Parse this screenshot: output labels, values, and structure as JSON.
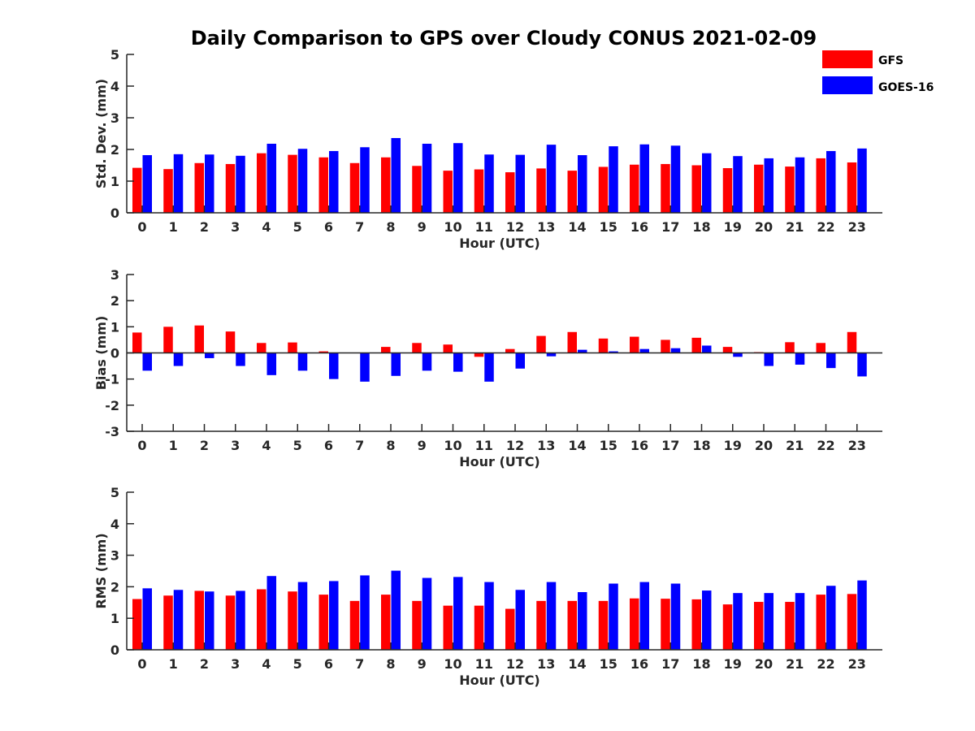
{
  "chart_data": [
    {
      "type": "bar",
      "title": "Daily Comparison to GPS over Cloudy CONUS 2021-02-09",
      "xlabel": "Hour (UTC)",
      "ylabel": "Std. Dev. (mm)",
      "ylim": [
        0,
        5
      ],
      "yticks": [
        "0",
        "1",
        "2",
        "3",
        "4",
        "5"
      ],
      "categories": [
        "0",
        "1",
        "2",
        "3",
        "4",
        "5",
        "6",
        "7",
        "8",
        "9",
        "10",
        "11",
        "12",
        "13",
        "14",
        "15",
        "16",
        "17",
        "18",
        "19",
        "20",
        "21",
        "22",
        "23"
      ],
      "series": [
        {
          "name": "GFS",
          "color": "#ff0000",
          "values": [
            1.42,
            1.38,
            1.57,
            1.54,
            1.88,
            1.83,
            1.75,
            1.57,
            1.75,
            1.48,
            1.33,
            1.37,
            1.28,
            1.4,
            1.33,
            1.45,
            1.52,
            1.54,
            1.5,
            1.41,
            1.52,
            1.46,
            1.72,
            1.59
          ]
        },
        {
          "name": "GOES-16",
          "color": "#0000ff",
          "values": [
            1.82,
            1.85,
            1.84,
            1.8,
            2.18,
            2.02,
            1.95,
            2.07,
            2.36,
            2.18,
            2.2,
            1.84,
            1.83,
            2.15,
            1.82,
            2.1,
            2.16,
            2.12,
            1.88,
            1.79,
            1.72,
            1.75,
            1.95,
            2.03
          ]
        }
      ]
    },
    {
      "type": "bar",
      "xlabel": "Hour (UTC)",
      "ylabel": "Bias (mm)",
      "ylim": [
        -3,
        3
      ],
      "yticks": [
        "-3",
        "-2",
        "-1",
        "0",
        "1",
        "2",
        "3"
      ],
      "categories": [
        "0",
        "1",
        "2",
        "3",
        "4",
        "5",
        "6",
        "7",
        "8",
        "9",
        "10",
        "11",
        "12",
        "13",
        "14",
        "15",
        "16",
        "17",
        "18",
        "19",
        "20",
        "21",
        "22",
        "23"
      ],
      "series": [
        {
          "name": "GFS",
          "color": "#ff0000",
          "values": [
            0.78,
            1.0,
            1.05,
            0.82,
            0.38,
            0.4,
            0.06,
            0.0,
            0.23,
            0.38,
            0.32,
            -0.15,
            0.15,
            0.65,
            0.8,
            0.55,
            0.62,
            0.5,
            0.58,
            0.23,
            0.03,
            0.41,
            0.38,
            0.8
          ]
        },
        {
          "name": "GOES-16",
          "color": "#0000ff",
          "values": [
            -0.68,
            -0.5,
            -0.2,
            -0.5,
            -0.85,
            -0.68,
            -1.0,
            -1.1,
            -0.88,
            -0.68,
            -0.72,
            -1.1,
            -0.6,
            -0.13,
            0.12,
            0.06,
            0.15,
            0.18,
            0.28,
            -0.15,
            -0.5,
            -0.45,
            -0.58,
            -0.9
          ]
        }
      ]
    },
    {
      "type": "bar",
      "xlabel": "Hour (UTC)",
      "ylabel": "RMS (mm)",
      "ylim": [
        0,
        5
      ],
      "yticks": [
        "0",
        "1",
        "2",
        "3",
        "4",
        "5"
      ],
      "categories": [
        "0",
        "1",
        "2",
        "3",
        "4",
        "5",
        "6",
        "7",
        "8",
        "9",
        "10",
        "11",
        "12",
        "13",
        "14",
        "15",
        "16",
        "17",
        "18",
        "19",
        "20",
        "21",
        "22",
        "23"
      ],
      "series": [
        {
          "name": "GFS",
          "color": "#ff0000",
          "values": [
            1.61,
            1.72,
            1.87,
            1.72,
            1.92,
            1.85,
            1.75,
            1.55,
            1.75,
            1.55,
            1.4,
            1.4,
            1.3,
            1.55,
            1.55,
            1.55,
            1.63,
            1.62,
            1.6,
            1.44,
            1.52,
            1.52,
            1.75,
            1.77
          ]
        },
        {
          "name": "GOES-16",
          "color": "#0000ff",
          "values": [
            1.95,
            1.9,
            1.85,
            1.87,
            2.34,
            2.15,
            2.18,
            2.36,
            2.51,
            2.28,
            2.31,
            2.15,
            1.9,
            2.15,
            1.83,
            2.1,
            2.15,
            2.1,
            1.88,
            1.8,
            1.8,
            1.8,
            2.03,
            2.2
          ]
        }
      ]
    }
  ],
  "legend": {
    "items": [
      {
        "label": "GFS",
        "color": "#ff0000"
      },
      {
        "label": "GOES-16",
        "color": "#0000ff"
      }
    ]
  }
}
